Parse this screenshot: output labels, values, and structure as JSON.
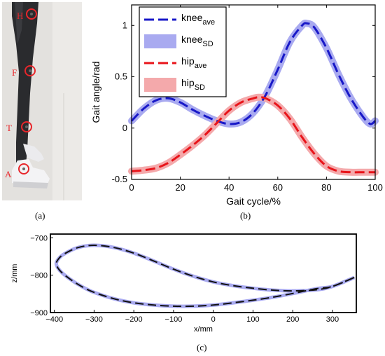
{
  "panel_labels": {
    "a": "(a)",
    "b": "(b)",
    "c": "(c)"
  },
  "photo": {
    "markers": [
      {
        "label": "H"
      },
      {
        "label": "F"
      },
      {
        "label": "T"
      },
      {
        "label": "A"
      }
    ],
    "marker_color": "#e8262b"
  },
  "chart_data": [
    {
      "type": "line",
      "xlabel": "Gait cycle/%",
      "ylabel": "Gait angle/rad",
      "xlim": [
        0,
        100
      ],
      "ylim": [
        -0.5,
        1.2
      ],
      "xticks": [
        "0",
        "20",
        "40",
        "60",
        "80",
        "100"
      ],
      "yticks": [
        "-0.5",
        "0",
        "0.5",
        "1"
      ],
      "legend_position": "top-left",
      "legend": [
        {
          "base": "knee",
          "sub": "ave",
          "style": "dashed",
          "color": "#1818c8"
        },
        {
          "base": "knee",
          "sub": "SD",
          "style": "band",
          "color": "#a9aaf0"
        },
        {
          "base": "hip",
          "sub": "ave",
          "style": "dashed",
          "color": "#e8141a"
        },
        {
          "base": "hip",
          "sub": "SD",
          "style": "band",
          "color": "#f4a9ab"
        }
      ],
      "series": [
        {
          "color": "#1818c8",
          "band_color": "#a9aaf0",
          "x": [
            0,
            5,
            10,
            15,
            20,
            25,
            30,
            35,
            40,
            45,
            50,
            55,
            60,
            65,
            70,
            72,
            75,
            80,
            85,
            90,
            95,
            98,
            100
          ],
          "values": [
            0.07,
            0.19,
            0.27,
            0.29,
            0.25,
            0.18,
            0.12,
            0.07,
            0.04,
            0.06,
            0.15,
            0.32,
            0.57,
            0.84,
            1.0,
            1.02,
            0.98,
            0.78,
            0.52,
            0.29,
            0.11,
            0.04,
            0.07
          ]
        },
        {
          "color": "#e8141a",
          "band_color": "#f4a9ab",
          "x": [
            0,
            5,
            10,
            15,
            20,
            25,
            30,
            35,
            40,
            45,
            50,
            52,
            55,
            60,
            65,
            70,
            75,
            80,
            85,
            90,
            95,
            100
          ],
          "values": [
            -0.42,
            -0.41,
            -0.39,
            -0.34,
            -0.26,
            -0.17,
            -0.07,
            0.05,
            0.17,
            0.25,
            0.29,
            0.3,
            0.29,
            0.22,
            0.09,
            -0.09,
            -0.25,
            -0.37,
            -0.42,
            -0.43,
            -0.43,
            -0.43
          ]
        }
      ]
    },
    {
      "type": "line",
      "xlabel": "x/mm",
      "ylabel": "z/mm",
      "xlim": [
        -410,
        360
      ],
      "ylim": [
        -900,
        -690
      ],
      "xticks": [
        "−400",
        "−300",
        "−200",
        "−100",
        "0",
        "100",
        "200",
        "300"
      ],
      "yticks": [
        "−700",
        "−800",
        "−900"
      ],
      "series": [
        {
          "color": "#111111",
          "band_color": "#a9aaf0",
          "x": [
            355,
            300,
            260,
            200,
            150,
            100,
            50,
            0,
            -50,
            -100,
            -150,
            -200,
            -250,
            -300,
            -330,
            -360,
            -385,
            -395,
            -390,
            -375,
            -340,
            -300,
            -250,
            -200,
            -150,
            -100,
            -50,
            0,
            50,
            100,
            150,
            200,
            260,
            300,
            355
          ],
          "values": [
            -806,
            -830,
            -836,
            -849,
            -859,
            -867,
            -874,
            -880,
            -883,
            -883,
            -880,
            -874,
            -863,
            -846,
            -831,
            -811,
            -789,
            -771,
            -757,
            -743,
            -726,
            -720,
            -726,
            -741,
            -762,
            -784,
            -803,
            -818,
            -828,
            -835,
            -840,
            -842,
            -839,
            -830,
            -806
          ]
        }
      ]
    }
  ]
}
